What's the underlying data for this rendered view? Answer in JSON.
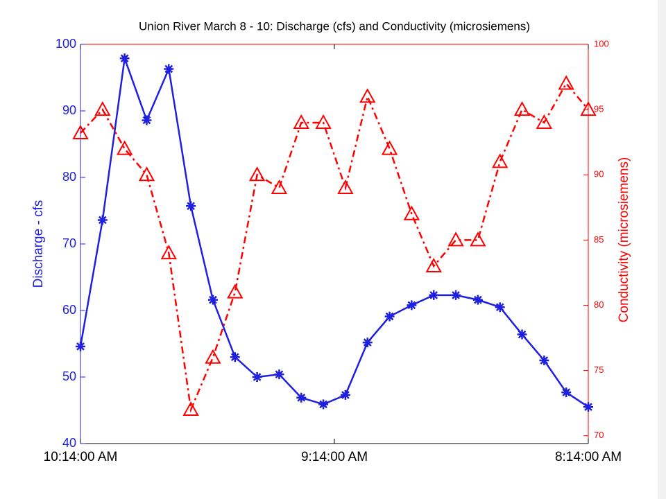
{
  "chart_data": {
    "type": "line",
    "title": "Union River March 8  - 10:  Discharge (cfs) and Conductivity (microsiemens)",
    "ylabel": "Discharge - cfs",
    "y2label": "Conductivity (microsiemens)",
    "x": [
      0,
      1,
      2,
      3,
      4,
      5,
      6,
      7,
      8,
      9,
      10,
      11,
      12,
      13,
      14,
      15,
      16,
      17,
      18,
      19,
      20,
      21,
      22,
      23
    ],
    "xlim": [
      0,
      23
    ],
    "xticks": [
      {
        "value": 0,
        "label": "10:14:00 AM"
      },
      {
        "value": 11.5,
        "label": "9:14:00 AM"
      },
      {
        "value": 23,
        "label": "8:14:00 AM"
      }
    ],
    "ylim": [
      40,
      100
    ],
    "yticks": [
      40,
      50,
      60,
      70,
      80,
      90,
      100
    ],
    "y2lim": [
      69.4,
      100
    ],
    "y2ticks": [
      70,
      75,
      80,
      85,
      90,
      95,
      100
    ],
    "ycolor": "#2020e0",
    "y2color": "#ff0000",
    "series": [
      {
        "color": "#1f1fe0",
        "marker": "asterisk",
        "linestyle": "solid",
        "values": [
          54.6,
          73.6,
          97.9,
          88.6,
          96.3,
          75.7,
          61.6,
          53.0,
          50.0,
          50.4,
          46.9,
          45.9,
          47.3,
          55.2,
          59.1,
          60.8,
          62.3,
          62.3,
          61.6,
          60.5,
          56.4,
          52.5,
          47.7,
          45.5
        ]
      },
      {
        "color": "#ff0000",
        "marker": "triangle",
        "linestyle": "dashdot",
        "axis": "y2",
        "values": [
          93.2,
          95,
          92,
          90,
          84,
          72,
          76,
          81,
          90,
          89,
          94,
          94,
          89,
          96,
          92,
          87,
          83,
          85,
          85,
          91,
          95,
          94,
          97,
          95
        ]
      }
    ]
  }
}
